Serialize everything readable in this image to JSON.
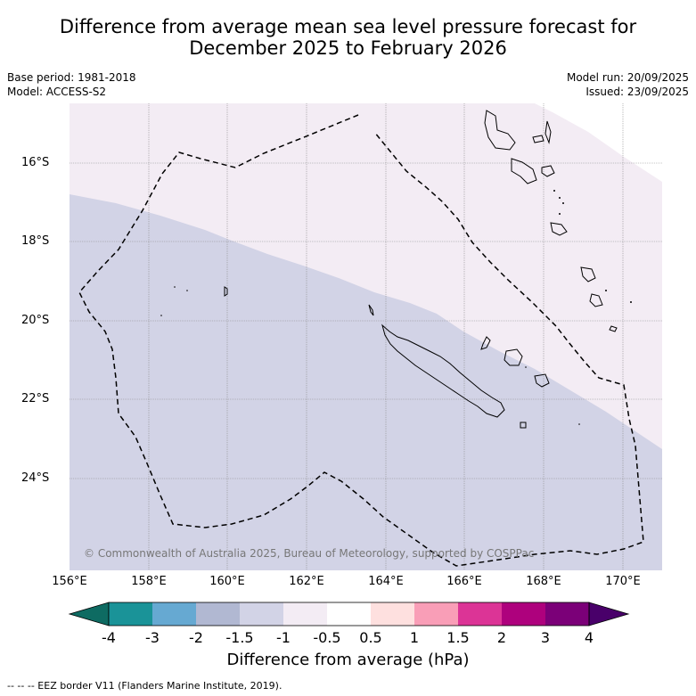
{
  "title": {
    "line1": "Difference from average mean sea level pressure forecast for",
    "line2": "December 2025 to February 2026"
  },
  "meta_left": {
    "base_period": "Base period: 1981-2018",
    "model": "Model: ACCESS-S2"
  },
  "meta_right": {
    "model_run": "Model run: 20/09/2025",
    "issued": "Issued: 23/09/2025"
  },
  "map": {
    "lat_labels": [
      "16°S",
      "18°S",
      "20°S",
      "22°S",
      "24°S"
    ],
    "lon_labels": [
      "156°E",
      "158°E",
      "160°E",
      "162°E",
      "164°E",
      "166°E",
      "168°E",
      "170°E"
    ],
    "copyright": "© Commonwealth of Australia 2025, Bureau of Meteorology, supported by COSPPac",
    "regions": [
      {
        "category": "-0.5 to -1",
        "color": "#f3ecf4"
      },
      {
        "category": "-1 to -1.5",
        "color": "#d2d3e6"
      }
    ]
  },
  "colorbar": {
    "title": "Difference from average (hPa)",
    "tick_labels": [
      "-4",
      "-3",
      "-2",
      "-1.5",
      "-1",
      "-0.5",
      "0.5",
      "1",
      "1.5",
      "2",
      "3",
      "4"
    ],
    "colors": [
      "#1a9398",
      "#66a9d2",
      "#b1b8d2",
      "#d2d3e6",
      "#f3ecf4",
      "#ffffff",
      "#fee0df",
      "#f99eb7",
      "#dc3496",
      "#ae017d",
      "#7b0078"
    ],
    "low_extend_color": "#0e6b62",
    "high_extend_color": "#49006a"
  },
  "footnote": "--  --  -- EEZ border V11 (Flanders Marine Institute, 2019)."
}
